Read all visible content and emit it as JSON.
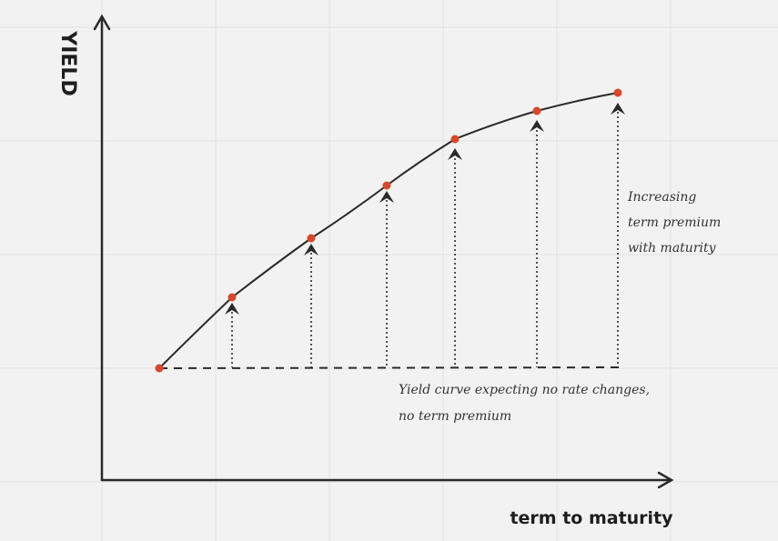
{
  "y_axis_label": "YIELD",
  "x_axis_label": "term to maturity",
  "annotations": [
    {
      "lines": [
        "Increasing",
        "term premium",
        "with maturity"
      ]
    },
    {
      "lines": [
        "Yield curve expecting no rate changes,",
        "no term premium"
      ]
    }
  ]
}
